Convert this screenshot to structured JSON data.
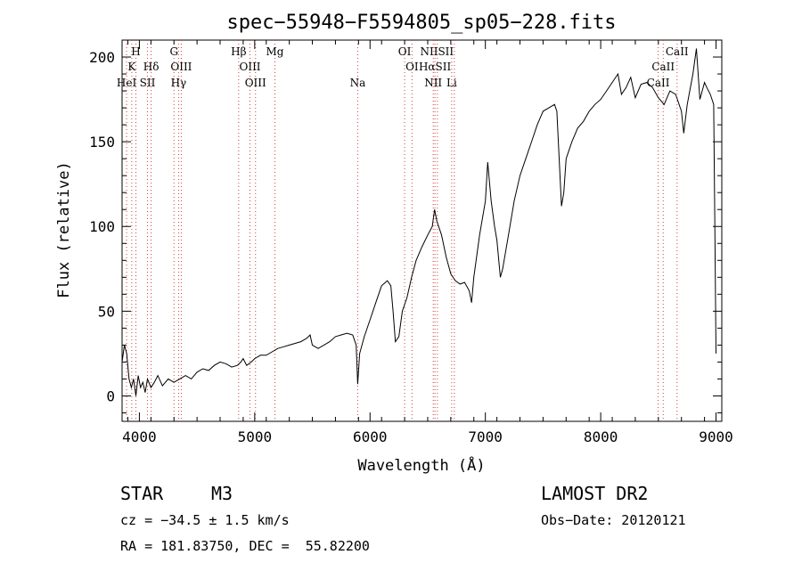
{
  "chart_data": {
    "type": "line",
    "title": "spec−55948−F5594805_sp05−228.fits",
    "xlabel": "Wavelength (Å)",
    "ylabel": "Flux (relative)",
    "xlim": [
      3850,
      9050
    ],
    "ylim": [
      -15,
      210
    ],
    "xticks": [
      4000,
      5000,
      6000,
      7000,
      8000,
      9000
    ],
    "yticks": [
      0,
      50,
      100,
      150,
      200
    ],
    "grid": false,
    "series": [
      {
        "color": "#000000",
        "points": [
          [
            3850,
            20
          ],
          [
            3870,
            30
          ],
          [
            3890,
            25
          ],
          [
            3910,
            10
          ],
          [
            3930,
            5
          ],
          [
            3950,
            10
          ],
          [
            3970,
            0
          ],
          [
            3990,
            12
          ],
          [
            4010,
            5
          ],
          [
            4030,
            8
          ],
          [
            4050,
            2
          ],
          [
            4070,
            10
          ],
          [
            4100,
            5
          ],
          [
            4130,
            8
          ],
          [
            4160,
            12
          ],
          [
            4200,
            6
          ],
          [
            4250,
            10
          ],
          [
            4300,
            8
          ],
          [
            4350,
            10
          ],
          [
            4400,
            12
          ],
          [
            4450,
            10
          ],
          [
            4500,
            14
          ],
          [
            4550,
            16
          ],
          [
            4600,
            15
          ],
          [
            4650,
            18
          ],
          [
            4700,
            20
          ],
          [
            4750,
            19
          ],
          [
            4800,
            17
          ],
          [
            4850,
            18
          ],
          [
            4880,
            20
          ],
          [
            4900,
            22
          ],
          [
            4930,
            18
          ],
          [
            4970,
            20
          ],
          [
            5000,
            22
          ],
          [
            5050,
            24
          ],
          [
            5100,
            24
          ],
          [
            5150,
            26
          ],
          [
            5200,
            28
          ],
          [
            5250,
            29
          ],
          [
            5300,
            30
          ],
          [
            5350,
            31
          ],
          [
            5400,
            32
          ],
          [
            5450,
            34
          ],
          [
            5480,
            36
          ],
          [
            5500,
            30
          ],
          [
            5550,
            28
          ],
          [
            5600,
            30
          ],
          [
            5650,
            32
          ],
          [
            5700,
            35
          ],
          [
            5750,
            36
          ],
          [
            5800,
            37
          ],
          [
            5850,
            36
          ],
          [
            5880,
            30
          ],
          [
            5893,
            7
          ],
          [
            5910,
            25
          ],
          [
            5950,
            35
          ],
          [
            6000,
            45
          ],
          [
            6050,
            55
          ],
          [
            6100,
            65
          ],
          [
            6150,
            68
          ],
          [
            6180,
            65
          ],
          [
            6200,
            50
          ],
          [
            6220,
            32
          ],
          [
            6250,
            35
          ],
          [
            6280,
            50
          ],
          [
            6320,
            58
          ],
          [
            6360,
            70
          ],
          [
            6400,
            80
          ],
          [
            6450,
            88
          ],
          [
            6500,
            95
          ],
          [
            6540,
            100
          ],
          [
            6560,
            110
          ],
          [
            6580,
            103
          ],
          [
            6620,
            95
          ],
          [
            6660,
            82
          ],
          [
            6700,
            72
          ],
          [
            6740,
            68
          ],
          [
            6780,
            66
          ],
          [
            6820,
            67
          ],
          [
            6860,
            62
          ],
          [
            6880,
            55
          ],
          [
            6900,
            70
          ],
          [
            6950,
            95
          ],
          [
            7000,
            115
          ],
          [
            7020,
            138
          ],
          [
            7050,
            115
          ],
          [
            7080,
            100
          ],
          [
            7100,
            92
          ],
          [
            7130,
            70
          ],
          [
            7150,
            75
          ],
          [
            7200,
            95
          ],
          [
            7250,
            115
          ],
          [
            7300,
            130
          ],
          [
            7350,
            140
          ],
          [
            7400,
            150
          ],
          [
            7450,
            160
          ],
          [
            7500,
            168
          ],
          [
            7550,
            170
          ],
          [
            7600,
            172
          ],
          [
            7620,
            168
          ],
          [
            7640,
            140
          ],
          [
            7660,
            112
          ],
          [
            7680,
            120
          ],
          [
            7700,
            140
          ],
          [
            7750,
            150
          ],
          [
            7800,
            158
          ],
          [
            7850,
            162
          ],
          [
            7900,
            168
          ],
          [
            7950,
            172
          ],
          [
            8000,
            175
          ],
          [
            8050,
            180
          ],
          [
            8100,
            185
          ],
          [
            8150,
            190
          ],
          [
            8180,
            178
          ],
          [
            8220,
            182
          ],
          [
            8260,
            188
          ],
          [
            8300,
            176
          ],
          [
            8350,
            184
          ],
          [
            8400,
            185
          ],
          [
            8450,
            182
          ],
          [
            8500,
            176
          ],
          [
            8550,
            172
          ],
          [
            8600,
            180
          ],
          [
            8650,
            178
          ],
          [
            8700,
            168
          ],
          [
            8720,
            155
          ],
          [
            8750,
            172
          ],
          [
            8800,
            190
          ],
          [
            8830,
            205
          ],
          [
            8860,
            175
          ],
          [
            8900,
            185
          ],
          [
            8920,
            182
          ],
          [
            8950,
            178
          ],
          [
            8980,
            172
          ],
          [
            8990,
            100
          ],
          [
            9000,
            25
          ]
        ]
      }
    ],
    "line_labels": [
      {
        "text": "H",
        "x": 3970,
        "row": 0
      },
      {
        "text": "G",
        "x": 4300,
        "row": 0
      },
      {
        "text": "Hβ",
        "x": 4861,
        "row": 0
      },
      {
        "text": "Mg",
        "x": 5175,
        "row": 0
      },
      {
        "text": "OI",
        "x": 6300,
        "row": 0
      },
      {
        "text": "NIISII",
        "x": 6580,
        "row": 0
      },
      {
        "text": "CaII",
        "x": 8662,
        "row": 0
      },
      {
        "text": "K",
        "x": 3934,
        "row": 1
      },
      {
        "text": "Hδ",
        "x": 4102,
        "row": 1
      },
      {
        "text": "OIII",
        "x": 4363,
        "row": 1
      },
      {
        "text": "OIII",
        "x": 4959,
        "row": 1
      },
      {
        "text": "OI",
        "x": 6364,
        "row": 1
      },
      {
        "text": "HαSII",
        "x": 6563,
        "row": 1
      },
      {
        "text": "CaII",
        "x": 8542,
        "row": 1
      },
      {
        "text": "HeI",
        "x": 3889,
        "row": 2
      },
      {
        "text": "SII",
        "x": 4070,
        "row": 2
      },
      {
        "text": "Hγ",
        "x": 4340,
        "row": 2
      },
      {
        "text": "OIII",
        "x": 5007,
        "row": 2
      },
      {
        "text": "Na",
        "x": 5893,
        "row": 2
      },
      {
        "text": "NII",
        "x": 6548,
        "row": 2
      },
      {
        "text": "Li",
        "x": 6708,
        "row": 2
      },
      {
        "text": "CaII",
        "x": 8498,
        "row": 2
      }
    ],
    "line_markers": [
      3889,
      3934,
      3970,
      4070,
      4102,
      4300,
      4340,
      4363,
      4861,
      4959,
      5007,
      5175,
      5893,
      6300,
      6364,
      6548,
      6563,
      6584,
      6708,
      6731,
      8498,
      8542,
      8662
    ]
  },
  "info": {
    "object_class": "STAR",
    "subclass": "M3",
    "survey": "LAMOST DR2",
    "cz": "cz = −34.5 ± 1.5 km/s",
    "obs_date": "Obs−Date: 20120121",
    "coords": "RA = 181.83750, DEC =  55.82200"
  }
}
